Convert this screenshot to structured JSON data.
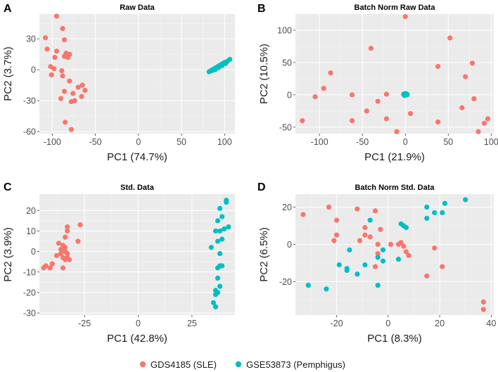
{
  "colors": {
    "sle": "#F8766D",
    "pemphigus": "#00BFC4",
    "panel": "#EBEBEB"
  },
  "legend": {
    "entries": [
      {
        "label": "GDS4185 (SLE)",
        "color": "#F8766D"
      },
      {
        "label": "GSE53873 (Pemphigus)",
        "color": "#00BFC4"
      }
    ]
  },
  "chart_data": [
    {
      "letter": "A",
      "type": "scatter",
      "title": "Raw Data",
      "xlabel": "PC1 (74.7%)",
      "ylabel": "PC2 (3.7%)",
      "xlim": [
        -115,
        112
      ],
      "ylim": [
        -62,
        54
      ],
      "xticks": [
        -100,
        -50,
        0,
        50,
        100
      ],
      "yticks": [
        -60,
        -30,
        0,
        30
      ],
      "series": [
        {
          "name": "GDS4185 (SLE)",
          "color": "#F8766D",
          "points": [
            [
              -95,
              52
            ],
            [
              -88,
              40
            ],
            [
              -108,
              31
            ],
            [
              -86,
              29
            ],
            [
              -106,
              20
            ],
            [
              -95,
              18
            ],
            [
              -84,
              16
            ],
            [
              -80,
              15
            ],
            [
              -97,
              12
            ],
            [
              -86,
              13
            ],
            [
              -82,
              12
            ],
            [
              -102,
              3
            ],
            [
              -98,
              1
            ],
            [
              -89,
              -1
            ],
            [
              -101,
              -5
            ],
            [
              -88,
              -6
            ],
            [
              -80,
              -11
            ],
            [
              -65,
              -15
            ],
            [
              -70,
              -17
            ],
            [
              -62,
              -20
            ],
            [
              -86,
              -21
            ],
            [
              -76,
              -23
            ],
            [
              -66,
              -26
            ],
            [
              -74,
              -30
            ],
            [
              -90,
              -28
            ],
            [
              -78,
              -31
            ],
            [
              -85,
              -51
            ],
            [
              -78,
              -58
            ]
          ]
        },
        {
          "name": "GSE53873 (Pemphigus)",
          "color": "#00BFC4",
          "points": [
            [
              82,
              -2
            ],
            [
              84,
              -1
            ],
            [
              86,
              0
            ],
            [
              88,
              1
            ],
            [
              90,
              2
            ],
            [
              92,
              3
            ],
            [
              94,
              4
            ],
            [
              96,
              5
            ],
            [
              98,
              6
            ],
            [
              100,
              7
            ],
            [
              103,
              8
            ],
            [
              106,
              10
            ],
            [
              85,
              -1
            ],
            [
              89,
              0
            ],
            [
              93,
              2
            ],
            [
              97,
              4
            ],
            [
              101,
              6
            ]
          ]
        }
      ]
    },
    {
      "letter": "B",
      "type": "scatter",
      "title": "Batch Norm Raw Data",
      "xlabel": "PC1 (21.9%)",
      "ylabel": "PC2 (10.5%)",
      "xlim": [
        -128,
        103
      ],
      "ylim": [
        -60,
        125
      ],
      "xticks": [
        -100,
        -50,
        0,
        50,
        100
      ],
      "yticks": [
        -50,
        0,
        50,
        100
      ],
      "series": [
        {
          "name": "GDS4185 (SLE)",
          "color": "#F8766D",
          "points": [
            [
              0,
              121
            ],
            [
              52,
              88
            ],
            [
              -40,
              72
            ],
            [
              78,
              49
            ],
            [
              -87,
              34
            ],
            [
              38,
              44
            ],
            [
              70,
              28
            ],
            [
              -95,
              10
            ],
            [
              -62,
              0
            ],
            [
              -22,
              1
            ],
            [
              -105,
              -3
            ],
            [
              -32,
              -10
            ],
            [
              80,
              -6
            ],
            [
              -45,
              -25
            ],
            [
              66,
              -20
            ],
            [
              6,
              -29
            ],
            [
              -120,
              -40
            ],
            [
              -62,
              -40
            ],
            [
              -22,
              -37
            ],
            [
              38,
              -42
            ],
            [
              96,
              -37
            ],
            [
              92,
              -44
            ],
            [
              -10,
              -57
            ],
            [
              85,
              -57
            ]
          ]
        },
        {
          "name": "GSE53873 (Pemphigus)",
          "color": "#00BFC4",
          "points": [
            [
              -1,
              1
            ],
            [
              1,
              0
            ],
            [
              2,
              1
            ],
            [
              0,
              2
            ],
            [
              -1,
              -1
            ],
            [
              1,
              1
            ],
            [
              0,
              0
            ],
            [
              2,
              0
            ],
            [
              -2,
              1
            ]
          ]
        }
      ]
    },
    {
      "letter": "C",
      "type": "scatter",
      "title": "Std. Data",
      "xlabel": "PC1 (42.8%)",
      "ylabel": "PC2 (3.9%)",
      "xlim": [
        -46,
        45
      ],
      "ylim": [
        -31,
        28
      ],
      "xticks": [
        -25,
        0,
        25
      ],
      "yticks": [
        -30,
        -20,
        -10,
        0,
        10,
        20
      ],
      "series": [
        {
          "name": "GDS4185 (SLE)",
          "color": "#F8766D",
          "points": [
            [
              -27,
              13
            ],
            [
              -33,
              12
            ],
            [
              -33,
              10
            ],
            [
              -34,
              7
            ],
            [
              -28,
              5
            ],
            [
              -37,
              4
            ],
            [
              -35,
              3
            ],
            [
              -34,
              2
            ],
            [
              -36,
              1
            ],
            [
              -34,
              0
            ],
            [
              -33,
              -1
            ],
            [
              -36,
              -1
            ],
            [
              -38,
              -2
            ],
            [
              -35,
              -3
            ],
            [
              -33,
              -3
            ],
            [
              -32,
              -4
            ],
            [
              -34,
              -4
            ],
            [
              -40,
              -6
            ],
            [
              -43,
              -7
            ],
            [
              -41,
              -8
            ],
            [
              -35,
              -8
            ],
            [
              -44,
              -8
            ]
          ]
        },
        {
          "name": "GSE53873 (Pemphigus)",
          "color": "#00BFC4",
          "points": [
            [
              41,
              25
            ],
            [
              41,
              24
            ],
            [
              38,
              21
            ],
            [
              39,
              17
            ],
            [
              37,
              15
            ],
            [
              42,
              12
            ],
            [
              40,
              11
            ],
            [
              38,
              10
            ],
            [
              36,
              10
            ],
            [
              39,
              6
            ],
            [
              37,
              5
            ],
            [
              34,
              2
            ],
            [
              38,
              -1
            ],
            [
              38,
              -7
            ],
            [
              39,
              -7
            ],
            [
              37,
              -8
            ],
            [
              37,
              -13
            ],
            [
              38,
              -17
            ],
            [
              36,
              -19
            ],
            [
              37,
              -20
            ],
            [
              36,
              -21
            ],
            [
              35,
              -25
            ],
            [
              36,
              -27
            ]
          ]
        }
      ]
    },
    {
      "letter": "D",
      "type": "scatter",
      "title": "Batch Norm Std. Data",
      "xlabel": "PC1 (8.3%)",
      "ylabel": "PC2 (6.5%)",
      "xlim": [
        -36,
        41
      ],
      "ylim": [
        -38,
        27
      ],
      "xticks": [
        -20,
        0,
        20,
        40
      ],
      "yticks": [
        -20,
        0,
        20
      ],
      "series": [
        {
          "name": "GDS4185 (SLE)",
          "color": "#F8766D",
          "points": [
            [
              -33,
              16
            ],
            [
              -23,
              20
            ],
            [
              -12,
              19
            ],
            [
              -5,
              18
            ],
            [
              -20,
              13
            ],
            [
              -9,
              9
            ],
            [
              -3,
              8
            ],
            [
              -9,
              5
            ],
            [
              -20,
              5
            ],
            [
              -7,
              4
            ],
            [
              -21,
              2
            ],
            [
              -11,
              2
            ],
            [
              -4,
              0
            ],
            [
              1,
              0
            ],
            [
              5,
              1
            ],
            [
              6,
              -1
            ],
            [
              4,
              0
            ],
            [
              7,
              -4
            ],
            [
              -4,
              -5
            ],
            [
              18,
              -2
            ],
            [
              8,
              -6
            ],
            [
              21,
              -12
            ],
            [
              -5,
              -12
            ],
            [
              15,
              -17
            ],
            [
              37,
              -31
            ],
            [
              37,
              -35
            ]
          ]
        },
        {
          "name": "GSE53873 (Pemphigus)",
          "color": "#00BFC4",
          "points": [
            [
              30,
              24
            ],
            [
              15,
              20
            ],
            [
              18,
              17
            ],
            [
              21,
              17
            ],
            [
              22,
              22
            ],
            [
              5,
              11
            ],
            [
              6,
              10
            ],
            [
              7,
              9
            ],
            [
              -7,
              13
            ],
            [
              15,
              14
            ],
            [
              -4,
              -7
            ],
            [
              -2,
              -9
            ],
            [
              -15,
              -3
            ],
            [
              -16,
              -13
            ],
            [
              -16,
              -14
            ],
            [
              -19,
              -11
            ],
            [
              -4,
              -22
            ],
            [
              -24,
              -24
            ],
            [
              -31,
              -22
            ],
            [
              -2,
              -3
            ],
            [
              6,
              10
            ],
            [
              4,
              -8
            ],
            [
              -9,
              -11
            ],
            [
              -12,
              -16
            ]
          ]
        }
      ]
    }
  ]
}
